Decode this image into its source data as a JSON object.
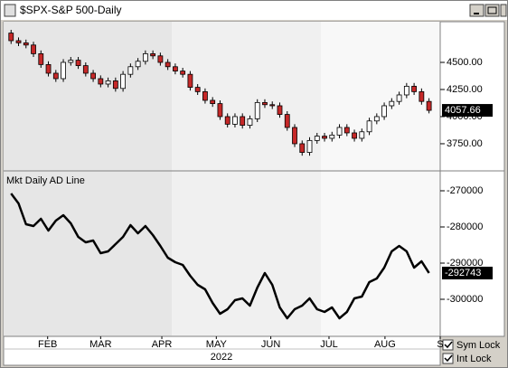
{
  "window": {
    "title": "$SPX-S&P 500-Daily"
  },
  "controls": [
    "Sym Lock",
    "Int Lock"
  ],
  "chart_data": [
    {
      "type": "candlestick",
      "open": [
        4770,
        4700,
        4680,
        4660,
        4580,
        4480,
        4400,
        4350,
        4500,
        4520,
        4470,
        4400,
        4350,
        4300,
        4330,
        4260,
        4390,
        4460,
        4510,
        4580,
        4560,
        4500,
        4460,
        4420,
        4390,
        4270,
        4230,
        4150,
        4120,
        4000,
        3930,
        4000,
        3920,
        3980,
        4130,
        4110,
        4100,
        4020,
        3900,
        3750,
        3670,
        3780,
        3820,
        3800,
        3830,
        3900,
        3850,
        3800,
        3860,
        3960,
        4000,
        4100,
        4140,
        4200,
        4280,
        4230,
        4140
      ],
      "high": [
        4800,
        4730,
        4710,
        4690,
        4610,
        4510,
        4430,
        4530,
        4550,
        4550,
        4500,
        4430,
        4380,
        4360,
        4360,
        4420,
        4490,
        4540,
        4610,
        4610,
        4590,
        4530,
        4490,
        4450,
        4420,
        4300,
        4260,
        4180,
        4150,
        4030,
        4030,
        4030,
        4010,
        4160,
        4160,
        4140,
        4130,
        4050,
        3930,
        3780,
        3810,
        3850,
        3850,
        3860,
        3930,
        3930,
        3880,
        3890,
        3990,
        4030,
        4130,
        4170,
        4230,
        4310,
        4310,
        4260,
        4170
      ],
      "low": [
        4670,
        4650,
        4630,
        4550,
        4450,
        4370,
        4320,
        4320,
        4470,
        4440,
        4370,
        4320,
        4270,
        4270,
        4230,
        4230,
        4360,
        4430,
        4480,
        4530,
        4470,
        4430,
        4390,
        4360,
        4240,
        4200,
        4120,
        4090,
        3970,
        3900,
        3900,
        3890,
        3890,
        3950,
        4080,
        4070,
        3990,
        3870,
        3720,
        3640,
        3640,
        3750,
        3770,
        3770,
        3800,
        3820,
        3770,
        3770,
        3830,
        3930,
        3970,
        4070,
        4110,
        4170,
        4200,
        4110,
        4030
      ],
      "close": [
        4700,
        4680,
        4660,
        4580,
        4480,
        4400,
        4350,
        4500,
        4520,
        4470,
        4400,
        4350,
        4300,
        4330,
        4260,
        4390,
        4460,
        4510,
        4580,
        4560,
        4500,
        4460,
        4420,
        4390,
        4270,
        4230,
        4150,
        4120,
        4000,
        3930,
        4000,
        3920,
        3980,
        4130,
        4110,
        4100,
        4020,
        3900,
        3750,
        3670,
        3780,
        3820,
        3800,
        3830,
        3900,
        3850,
        3800,
        3860,
        3960,
        4000,
        4100,
        4140,
        4200,
        4280,
        4230,
        4140,
        4057.66
      ],
      "up_color": "#ffffff",
      "down_color": "#c62828",
      "xlim": [
        -1,
        57.5
      ],
      "ylim": [
        3508,
        4875
      ],
      "yticks": [
        {
          "value": 3750,
          "label": "3750.00"
        },
        {
          "value": 4000,
          "label": "4000.00"
        },
        {
          "value": 4250,
          "label": "4250.00"
        },
        {
          "value": 4500,
          "label": "4500.00"
        }
      ]
    },
    {
      "type": "line",
      "title": "Mkt Daily AD Line",
      "color": "#000000",
      "values": [
        -270750,
        -273500,
        -279250,
        -279750,
        -277750,
        -281000,
        -278250,
        -276750,
        -279000,
        -282750,
        -284250,
        -283750,
        -287250,
        -286750,
        -284750,
        -282750,
        -279500,
        -281750,
        -279750,
        -282250,
        -285250,
        -288500,
        -289750,
        -290500,
        -293500,
        -296000,
        -297250,
        -301000,
        -304000,
        -302750,
        -300250,
        -299750,
        -301750,
        -296750,
        -292750,
        -296000,
        -302250,
        -305250,
        -302750,
        -301750,
        -299750,
        -302750,
        -303500,
        -302250,
        -305250,
        -303500,
        -299750,
        -299250,
        -295250,
        -294250,
        -291250,
        -286750,
        -285250,
        -286750,
        -291250,
        -289500,
        -292743
      ],
      "xlim": [
        -1,
        57.5
      ],
      "ylim": [
        -310250,
        -264750
      ],
      "yticks": [
        -300000,
        -290000,
        -280000,
        -270000
      ],
      "xticks": [
        {
          "value": 4.9,
          "label": "FEB"
        },
        {
          "value": 12.0,
          "label": "MAR"
        },
        {
          "value": 20.2,
          "label": "APR"
        },
        {
          "value": 27.5,
          "label": "MAY"
        },
        {
          "value": 34.8,
          "label": "JUN"
        },
        {
          "value": 42.6,
          "label": "JUL"
        },
        {
          "value": 50.1,
          "label": "AUG"
        },
        {
          "value": 57.5,
          "label": "S"
        }
      ],
      "xlabel": "2022"
    }
  ]
}
